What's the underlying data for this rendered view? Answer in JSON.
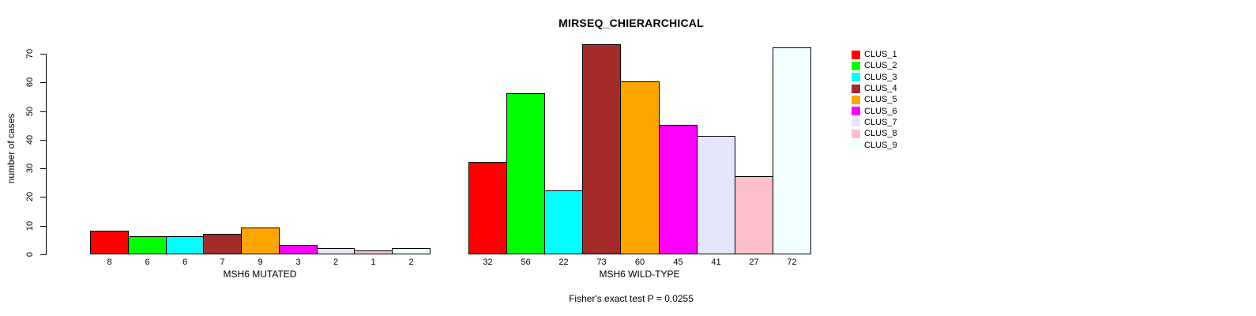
{
  "chart_data": {
    "type": "bar",
    "title": "MIRSEQ_CHIERARCHICAL",
    "subtitle": "Fisher's exact test P = 0.0255",
    "ylabel": "number of cases",
    "xlabel": "",
    "ylim": [
      0,
      70
    ],
    "yticks": [
      0,
      10,
      20,
      30,
      40,
      50,
      60,
      70
    ],
    "grid": false,
    "legend_position": "right",
    "bar_value_labels_shown": true,
    "categories": [
      "MSH6 MUTATED",
      "MSH6 WILD-TYPE"
    ],
    "series": [
      {
        "name": "CLUS_1",
        "color": "#FF0000",
        "values": [
          8,
          32
        ]
      },
      {
        "name": "CLUS_2",
        "color": "#00FF00",
        "values": [
          6,
          56
        ]
      },
      {
        "name": "CLUS_3",
        "color": "#00FFFF",
        "values": [
          6,
          22
        ]
      },
      {
        "name": "CLUS_4",
        "color": "#A52A2A",
        "values": [
          7,
          73
        ]
      },
      {
        "name": "CLUS_5",
        "color": "#FFA500",
        "values": [
          9,
          60
        ]
      },
      {
        "name": "CLUS_6",
        "color": "#FF00FF",
        "values": [
          3,
          45
        ]
      },
      {
        "name": "CLUS_7",
        "color": "#E6E6FA",
        "values": [
          2,
          41
        ]
      },
      {
        "name": "CLUS_8",
        "color": "#FFC0CB",
        "values": [
          1,
          27
        ]
      },
      {
        "name": "CLUS_9",
        "color": "#F0FFFF",
        "values": [
          2,
          72
        ]
      }
    ]
  }
}
